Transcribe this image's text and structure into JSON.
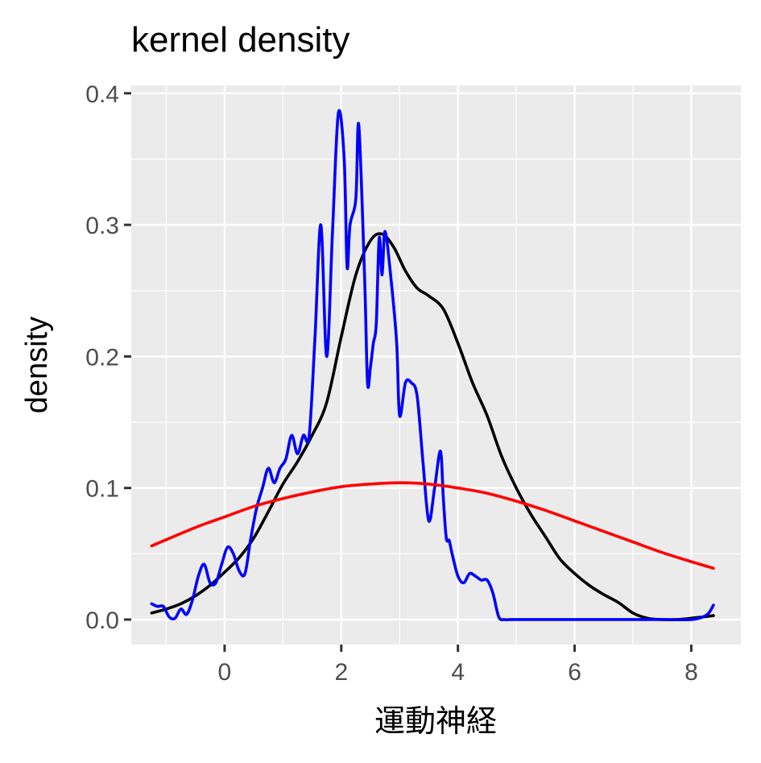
{
  "chart_data": {
    "type": "line",
    "title": "kernel density",
    "xlabel": "運動神経",
    "ylabel": "density",
    "xlim": [
      -1.6,
      8.85
    ],
    "ylim": [
      -0.019,
      0.406
    ],
    "x_ticks": [
      0,
      2,
      4,
      6,
      8
    ],
    "y_ticks": [
      0.0,
      0.1,
      0.2,
      0.3,
      0.4
    ],
    "x_tick_labels": [
      "0",
      "2",
      "4",
      "6",
      "8"
    ],
    "y_tick_labels": [
      "0.0",
      "0.1",
      "0.2",
      "0.3",
      "0.4"
    ],
    "grid": true,
    "legend": "none",
    "series": [
      {
        "color": "#000000",
        "x": [
          -1.25,
          -1.0,
          -0.75,
          -0.5,
          -0.25,
          0.0,
          0.25,
          0.5,
          0.75,
          1.0,
          1.25,
          1.5,
          1.75,
          2.0,
          2.25,
          2.5,
          2.7,
          2.9,
          3.1,
          3.3,
          3.5,
          3.75,
          4.0,
          4.25,
          4.5,
          4.75,
          5.0,
          5.25,
          5.5,
          5.75,
          6.0,
          6.25,
          6.5,
          6.75,
          7.0,
          7.25,
          7.5,
          7.75,
          8.0,
          8.38
        ],
        "y": [
          0.005,
          0.008,
          0.012,
          0.018,
          0.026,
          0.036,
          0.047,
          0.062,
          0.082,
          0.103,
          0.12,
          0.14,
          0.165,
          0.215,
          0.262,
          0.288,
          0.293,
          0.283,
          0.265,
          0.252,
          0.246,
          0.236,
          0.21,
          0.18,
          0.155,
          0.124,
          0.1,
          0.08,
          0.063,
          0.046,
          0.035,
          0.026,
          0.019,
          0.013,
          0.005,
          0.001,
          0.0,
          0.0,
          0.001,
          0.003
        ]
      },
      {
        "color": "#0000ff",
        "x": [
          -1.25,
          -1.15,
          -1.05,
          -0.95,
          -0.85,
          -0.75,
          -0.65,
          -0.55,
          -0.45,
          -0.35,
          -0.25,
          -0.15,
          -0.05,
          0.05,
          0.15,
          0.25,
          0.35,
          0.45,
          0.55,
          0.65,
          0.75,
          0.85,
          0.95,
          1.05,
          1.15,
          1.25,
          1.35,
          1.45,
          1.55,
          1.65,
          1.75,
          1.85,
          1.95,
          2.05,
          2.1,
          2.15,
          2.25,
          2.3,
          2.4,
          2.45,
          2.5,
          2.55,
          2.6,
          2.65,
          2.7,
          2.75,
          2.85,
          2.95,
          3.0,
          3.1,
          3.2,
          3.3,
          3.4,
          3.5,
          3.6,
          3.7,
          3.75,
          3.8,
          3.85,
          3.9,
          4.0,
          4.1,
          4.2,
          4.3,
          4.4,
          4.5,
          4.6,
          4.7,
          4.8,
          4.9,
          5.0,
          5.1,
          5.2,
          5.3,
          5.4,
          5.5,
          5.6,
          5.7,
          5.8,
          5.9,
          6.0,
          6.1,
          6.2,
          6.3,
          6.4,
          6.5,
          6.6,
          6.7,
          6.8,
          6.9,
          7.0,
          7.5,
          8.0,
          8.2,
          8.3,
          8.38
        ],
        "y": [
          0.012,
          0.01,
          0.01,
          0.002,
          0.001,
          0.008,
          0.004,
          0.015,
          0.033,
          0.042,
          0.028,
          0.028,
          0.042,
          0.055,
          0.05,
          0.037,
          0.035,
          0.062,
          0.085,
          0.1,
          0.115,
          0.104,
          0.115,
          0.122,
          0.14,
          0.126,
          0.14,
          0.14,
          0.215,
          0.3,
          0.2,
          0.295,
          0.385,
          0.35,
          0.268,
          0.3,
          0.32,
          0.376,
          0.26,
          0.18,
          0.192,
          0.21,
          0.225,
          0.29,
          0.262,
          0.295,
          0.26,
          0.21,
          0.155,
          0.18,
          0.18,
          0.17,
          0.12,
          0.075,
          0.1,
          0.128,
          0.092,
          0.062,
          0.06,
          0.05,
          0.033,
          0.028,
          0.035,
          0.033,
          0.03,
          0.03,
          0.02,
          0.002,
          0.0,
          0.0,
          0.0,
          0.0,
          0.0,
          0.0,
          0.0,
          0.0,
          0.0,
          0.0,
          0.0,
          0.0,
          0.0,
          0.0,
          0.0,
          0.0,
          0.0,
          0.0,
          0.0,
          0.0,
          0.0,
          0.0,
          0.0,
          0.0,
          0.0,
          0.002,
          0.005,
          0.011
        ]
      },
      {
        "color": "#ff0000",
        "x": [
          -1.25,
          -0.5,
          0.0,
          0.5,
          1.0,
          1.5,
          2.0,
          2.5,
          3.0,
          3.5,
          4.0,
          4.5,
          5.0,
          5.5,
          6.0,
          6.5,
          7.0,
          7.5,
          8.0,
          8.38
        ],
        "y": [
          0.056,
          0.07,
          0.078,
          0.086,
          0.092,
          0.097,
          0.101,
          0.103,
          0.104,
          0.103,
          0.1,
          0.096,
          0.09,
          0.083,
          0.075,
          0.067,
          0.059,
          0.051,
          0.044,
          0.039
        ]
      }
    ]
  }
}
